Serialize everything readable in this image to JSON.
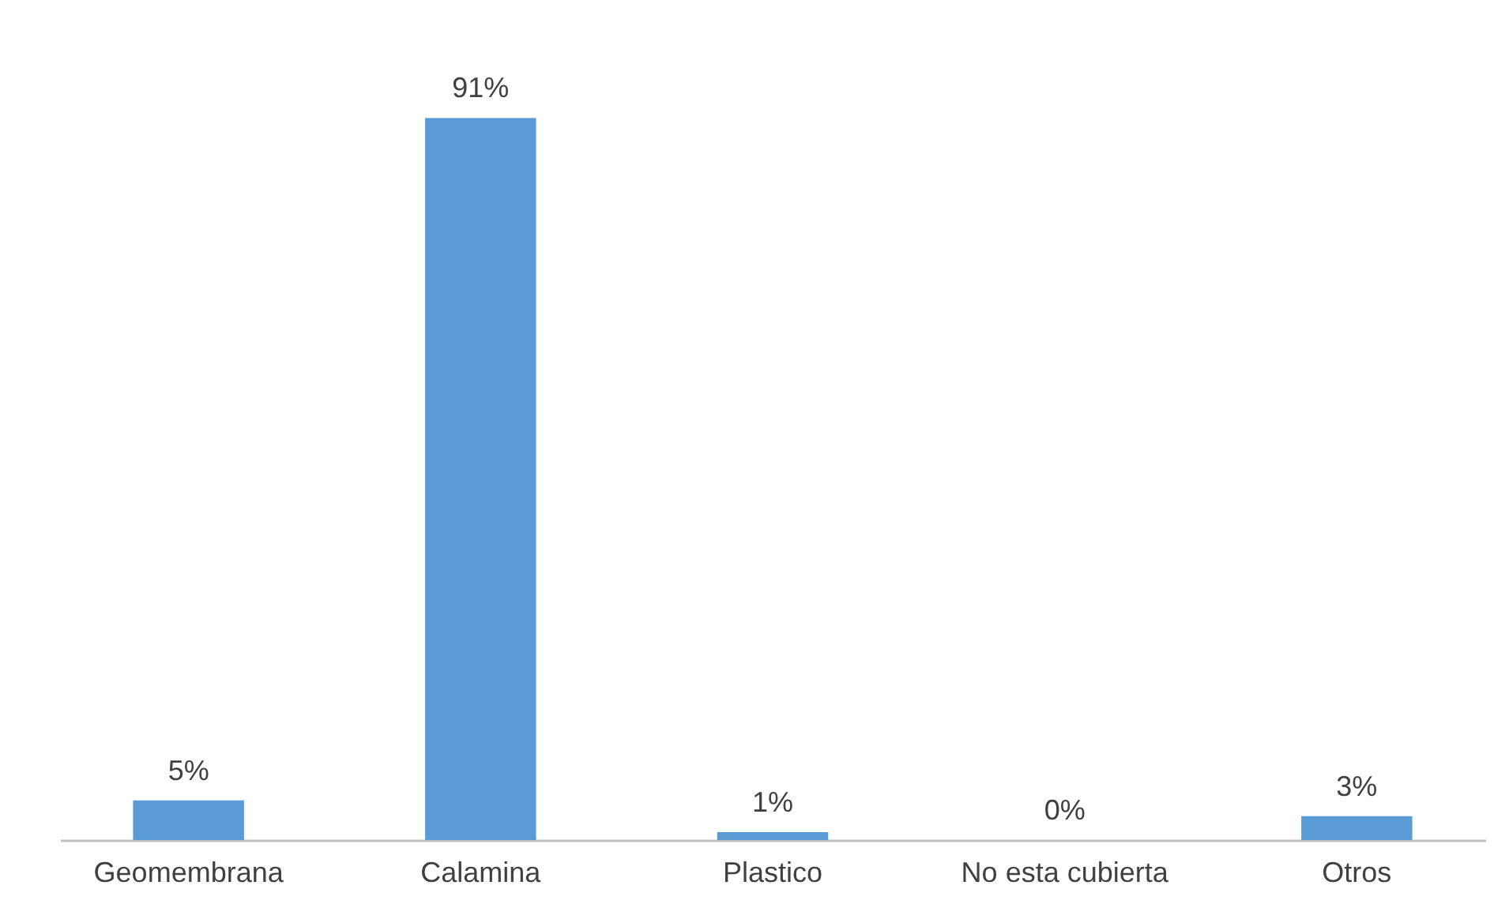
{
  "chart_data": {
    "type": "bar",
    "categories": [
      "Geomembrana",
      "Calamina",
      "Plastico",
      "No esta cubierta",
      "Otros"
    ],
    "values": [
      5,
      91,
      1,
      0,
      3
    ],
    "value_labels": [
      "5%",
      "91%",
      "1%",
      "0%",
      "3%"
    ],
    "color": "#5b9bd5"
  }
}
